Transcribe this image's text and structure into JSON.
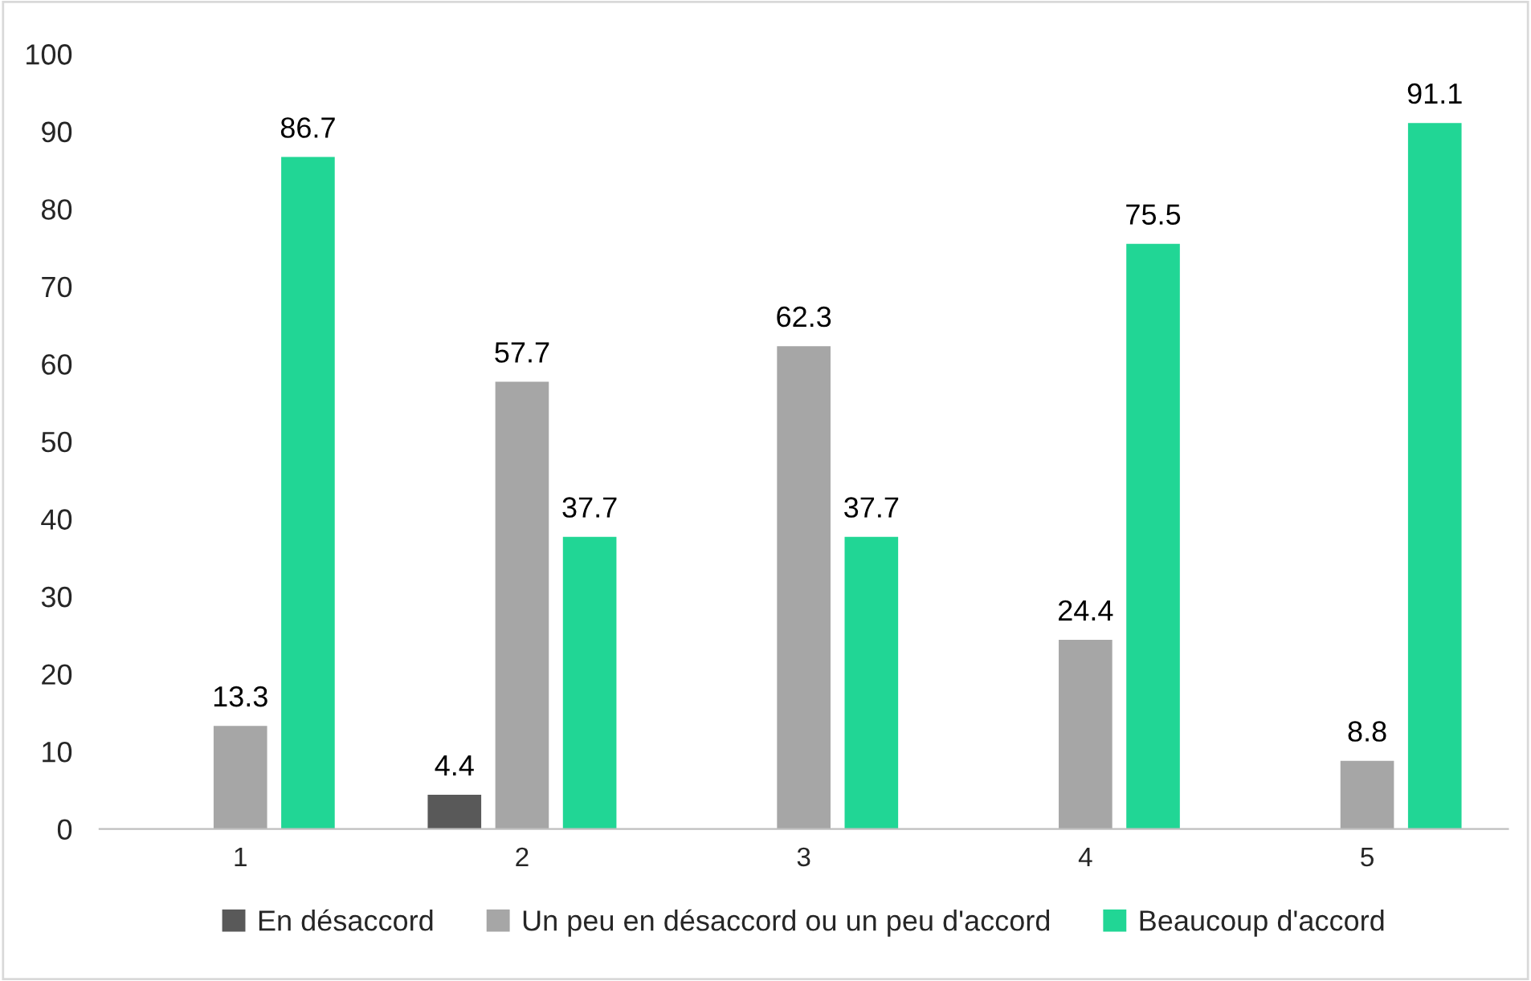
{
  "chart_data": {
    "type": "bar",
    "categories": [
      "1",
      "2",
      "3",
      "4",
      "5"
    ],
    "series": [
      {
        "name": "En désaccord",
        "color": "#595959",
        "values": [
          null,
          4.4,
          null,
          null,
          null
        ]
      },
      {
        "name": "Un peu en désaccord ou un peu d'accord",
        "color": "#a6a6a6",
        "values": [
          13.3,
          57.7,
          62.3,
          24.4,
          8.8
        ]
      },
      {
        "name": "Beaucoup d'accord",
        "color": "#21d695",
        "values": [
          86.7,
          37.7,
          37.7,
          75.5,
          91.1
        ]
      }
    ],
    "ylim": [
      0,
      100
    ],
    "yticks": [
      0,
      10,
      20,
      30,
      40,
      50,
      60,
      70,
      80,
      90,
      100
    ],
    "grid": false,
    "legend": "bottom",
    "data_labels": true
  }
}
